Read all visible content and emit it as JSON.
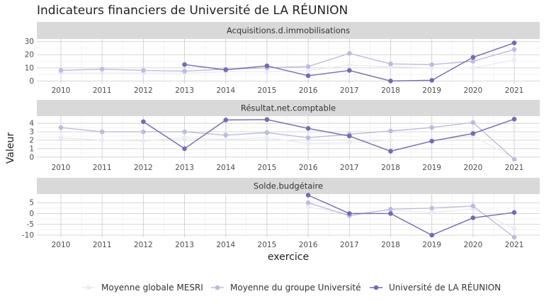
{
  "title": "Indicateurs financiers de Université de LA RÉUNION",
  "chart_data": {
    "type": "line",
    "title": "Indicateurs financiers de Université de LA RÉUNION",
    "xlabel": "exercice",
    "ylabel": "Valeur",
    "x": [
      "2010",
      "2011",
      "2012",
      "2013",
      "2014",
      "2015",
      "2016",
      "2017",
      "2018",
      "2019",
      "2020",
      "2021"
    ],
    "legend": {
      "position": "bottom",
      "items": [
        {
          "name": "Moyenne globale MESRI",
          "color": "#ecebf5"
        },
        {
          "name": "Moyenne du groupe Université",
          "color": "#bcbddc"
        },
        {
          "name": "Université de LA RÉUNION",
          "color": "#756bb1"
        }
      ]
    },
    "panels": [
      {
        "strip": "Acquisitions.d.immobilisations",
        "ylim": [
          -2,
          32
        ],
        "yticks": [
          "0",
          "10",
          "20",
          "30"
        ],
        "ytick_values": [
          0,
          10,
          20,
          30
        ],
        "series": [
          {
            "name": "Moyenne globale MESRI",
            "color": "#ecebf5",
            "values": [
              6,
              6,
              6,
              6,
              7,
              7,
              8,
              12,
              11,
              10,
              10,
              16
            ]
          },
          {
            "name": "Moyenne du groupe Université",
            "color": "#bcbddc",
            "values": [
              8,
              9,
              8,
              7.5,
              9,
              10,
              11,
              21,
              13,
              12.5,
              15,
              24
            ]
          },
          {
            "name": "Université de LA RÉUNION",
            "color": "#756bb1",
            "values": [
              null,
              null,
              null,
              12.5,
              8.5,
              11.5,
              4,
              8,
              0,
              0.5,
              18,
              29
            ]
          }
        ]
      },
      {
        "strip": "Résultat.net.comptable",
        "ylim": [
          -0.35,
          4.85
        ],
        "yticks": [
          "0",
          "1",
          "2",
          "3",
          "4"
        ],
        "ytick_values": [
          0,
          1,
          2,
          3,
          4
        ],
        "series": [
          {
            "name": "Moyenne globale MESRI",
            "color": "#ecebf5",
            "values": [
              2.3,
              2.0,
              1.9,
              2.3,
              2.1,
              2.3,
              1.6,
              1.7,
              2.0,
              2.0,
              2.5,
              -0.1
            ]
          },
          {
            "name": "Moyenne du groupe Université",
            "color": "#bcbddc",
            "values": [
              3.5,
              3.0,
              3.0,
              3.0,
              2.6,
              2.9,
              2.3,
              2.7,
              3.1,
              3.5,
              4.1,
              -0.25
            ]
          },
          {
            "name": "Université de LA RÉUNION",
            "color": "#756bb1",
            "values": [
              null,
              null,
              4.2,
              1.0,
              4.4,
              4.45,
              3.4,
              2.5,
              0.7,
              1.9,
              2.8,
              4.5
            ]
          }
        ]
      },
      {
        "strip": "Solde.budgétaire",
        "ylim": [
          -11,
          9
        ],
        "yticks": [
          "-10",
          "-5",
          "0",
          "5"
        ],
        "ytick_values": [
          -10,
          -5,
          0,
          5
        ],
        "series": [
          {
            "name": "Moyenne globale MESRI",
            "color": "#ecebf5",
            "values": [
              null,
              null,
              null,
              null,
              null,
              null,
              3,
              0,
              1.5,
              0.5,
              2,
              -7
            ]
          },
          {
            "name": "Moyenne du groupe Université",
            "color": "#bcbddc",
            "values": [
              null,
              null,
              null,
              null,
              null,
              null,
              5,
              -1,
              2,
              2.5,
              3.5,
              -11
            ]
          },
          {
            "name": "Université de LA RÉUNION",
            "color": "#756bb1",
            "values": [
              null,
              null,
              null,
              null,
              null,
              null,
              8.5,
              0,
              0,
              -10,
              -2,
              0.5
            ]
          }
        ]
      }
    ]
  }
}
